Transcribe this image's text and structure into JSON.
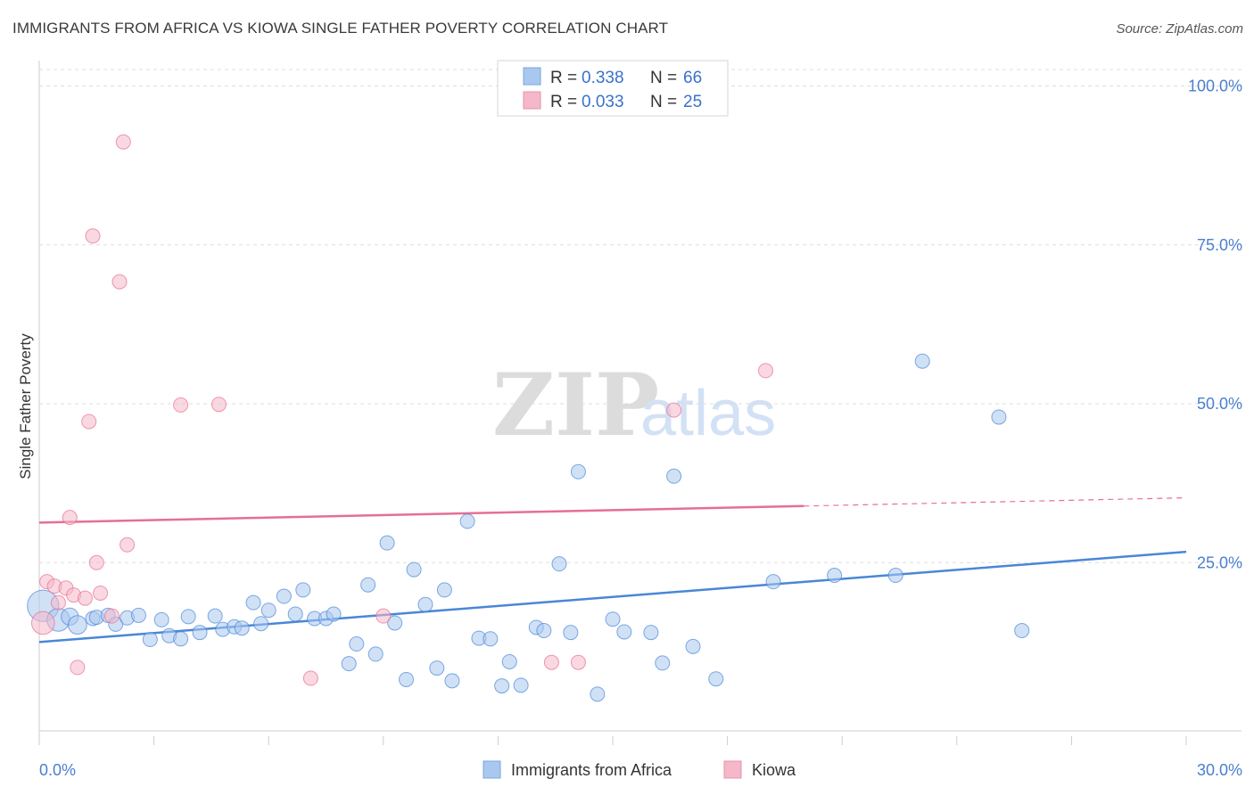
{
  "title": "IMMIGRANTS FROM AFRICA VS KIOWA SINGLE FATHER POVERTY CORRELATION CHART",
  "source": "Source: ZipAtlas.com",
  "watermark": {
    "zip": "ZIP",
    "atlas": "atlas"
  },
  "legend": {
    "rows": [
      {
        "r_label": "R =",
        "r_value": "0.338",
        "n_label": "N =",
        "n_value": "66",
        "color": "#a9c8ef"
      },
      {
        "r_label": "R =",
        "r_value": "0.033",
        "n_label": "N =",
        "n_value": "25",
        "color": "#f5b8c9"
      }
    ]
  },
  "bottom_legend": {
    "items": [
      {
        "label": "Immigrants from Africa",
        "color": "#a9c8ef"
      },
      {
        "label": "Kiowa",
        "color": "#f5b8c9"
      }
    ]
  },
  "chart_data": {
    "type": "scatter",
    "title": "IMMIGRANTS FROM AFRICA VS KIOWA SINGLE FATHER POVERTY CORRELATION CHART",
    "xlabel": "",
    "ylabel": "Single Father Poverty",
    "xlim": [
      0,
      30
    ],
    "ylim": [
      0,
      100
    ],
    "x_tick_labels": [
      {
        "value": 0,
        "label": "0.0%"
      },
      {
        "value": 30,
        "label": "30.0%"
      }
    ],
    "y_tick_labels": [
      {
        "value": 25,
        "label": "25.0%"
      },
      {
        "value": 50,
        "label": "50.0%"
      },
      {
        "value": 75,
        "label": "75.0%"
      },
      {
        "value": 100,
        "label": "100.0%"
      }
    ],
    "x_minor_ticks": [
      3,
      6,
      9,
      12,
      15,
      18,
      21,
      24,
      27,
      30
    ],
    "grid_y": [
      25,
      50,
      75,
      100
    ],
    "series": [
      {
        "name": "Immigrants from Africa",
        "color": "#4a86d8",
        "fill": "#a9c8ef",
        "trend": {
          "x0": 0,
          "y0": 12.5,
          "x1": 30,
          "y1": 26.7
        },
        "points": [
          [
            0.1,
            18.2,
            2.2
          ],
          [
            0.5,
            16.0,
            1.6
          ],
          [
            0.8,
            16.5,
            1.2
          ],
          [
            1.0,
            15.2,
            1.3
          ],
          [
            1.4,
            16.2,
            1.0
          ],
          [
            1.5,
            16.4,
            1.0
          ],
          [
            1.8,
            16.7,
            1.0
          ],
          [
            2.0,
            15.3,
            1.0
          ],
          [
            2.3,
            16.3,
            1.0
          ],
          [
            2.6,
            16.7,
            1.0
          ],
          [
            2.9,
            12.9,
            1.0
          ],
          [
            3.2,
            16.0,
            1.0
          ],
          [
            3.4,
            13.5,
            1.0
          ],
          [
            3.7,
            13.0,
            1.0
          ],
          [
            3.9,
            16.5,
            1.0
          ],
          [
            4.2,
            14.0,
            1.0
          ],
          [
            4.6,
            16.6,
            1.0
          ],
          [
            4.8,
            14.5,
            1.0
          ],
          [
            5.1,
            14.9,
            1.0
          ],
          [
            5.3,
            14.7,
            1.0
          ],
          [
            5.6,
            18.7,
            1.0
          ],
          [
            5.8,
            15.4,
            1.0
          ],
          [
            6.0,
            17.5,
            1.0
          ],
          [
            6.4,
            19.7,
            1.0
          ],
          [
            6.7,
            16.9,
            1.0
          ],
          [
            6.9,
            20.7,
            1.0
          ],
          [
            7.2,
            16.2,
            1.0
          ],
          [
            7.5,
            16.2,
            1.0
          ],
          [
            7.7,
            16.9,
            1.0
          ],
          [
            8.1,
            9.1,
            1.0
          ],
          [
            8.3,
            12.2,
            1.0
          ],
          [
            8.6,
            21.5,
            1.0
          ],
          [
            8.8,
            10.6,
            1.0
          ],
          [
            9.1,
            28.1,
            1.0
          ],
          [
            9.3,
            15.5,
            1.0
          ],
          [
            9.6,
            6.6,
            1.0
          ],
          [
            9.8,
            23.9,
            1.0
          ],
          [
            10.1,
            18.4,
            1.0
          ],
          [
            10.4,
            8.4,
            1.0
          ],
          [
            10.6,
            20.7,
            1.0
          ],
          [
            10.8,
            6.4,
            1.0
          ],
          [
            11.2,
            31.5,
            1.0
          ],
          [
            11.5,
            13.1,
            1.0
          ],
          [
            11.8,
            13.0,
            1.0
          ],
          [
            12.1,
            5.6,
            1.0
          ],
          [
            12.3,
            9.4,
            1.0
          ],
          [
            12.6,
            5.7,
            1.0
          ],
          [
            13.0,
            14.8,
            1.0
          ],
          [
            13.2,
            14.3,
            1.0
          ],
          [
            13.6,
            24.8,
            1.0
          ],
          [
            13.9,
            14.0,
            1.0
          ],
          [
            14.1,
            39.3,
            1.0
          ],
          [
            14.6,
            4.3,
            1.0
          ],
          [
            15.0,
            16.1,
            1.0
          ],
          [
            15.3,
            14.1,
            1.0
          ],
          [
            16.0,
            14.0,
            1.0
          ],
          [
            16.3,
            9.2,
            1.0
          ],
          [
            16.6,
            38.6,
            1.0
          ],
          [
            17.1,
            11.8,
            1.0
          ],
          [
            17.7,
            6.7,
            1.0
          ],
          [
            19.2,
            22.0,
            1.0
          ],
          [
            20.8,
            23.0,
            1.0
          ],
          [
            22.4,
            23.0,
            1.0
          ],
          [
            23.1,
            56.7,
            1.0
          ],
          [
            25.1,
            47.9,
            1.0
          ],
          [
            25.7,
            14.3,
            1.0
          ]
        ]
      },
      {
        "name": "Kiowa",
        "color": "#e56f94",
        "fill": "#f5b8c9",
        "trend": {
          "x0": 0,
          "y0": 31.3,
          "x1": 20,
          "y1": 33.9,
          "dash_to": {
            "x": 30,
            "y": 35.2
          }
        },
        "points": [
          [
            0.1,
            15.5,
            1.6
          ],
          [
            0.2,
            22.0,
            1.0
          ],
          [
            0.4,
            21.3,
            1.0
          ],
          [
            0.5,
            18.7,
            1.0
          ],
          [
            0.7,
            21.0,
            1.0
          ],
          [
            0.8,
            32.1,
            1.0
          ],
          [
            0.9,
            19.9,
            1.0
          ],
          [
            1.0,
            8.5,
            1.0
          ],
          [
            1.2,
            19.4,
            1.0
          ],
          [
            1.3,
            47.2,
            1.0
          ],
          [
            1.4,
            76.4,
            1.0
          ],
          [
            1.5,
            25.0,
            1.0
          ],
          [
            1.6,
            20.2,
            1.0
          ],
          [
            1.9,
            16.6,
            1.0
          ],
          [
            2.1,
            69.2,
            1.0
          ],
          [
            2.2,
            91.2,
            1.0
          ],
          [
            2.3,
            27.8,
            1.0
          ],
          [
            3.7,
            49.8,
            1.0
          ],
          [
            4.7,
            49.9,
            1.0
          ],
          [
            7.1,
            6.8,
            1.0
          ],
          [
            9.0,
            16.6,
            1.0
          ],
          [
            13.4,
            9.3,
            1.0
          ],
          [
            14.1,
            9.3,
            1.0
          ],
          [
            16.6,
            49.0,
            1.0
          ],
          [
            19.0,
            55.2,
            1.0
          ]
        ]
      }
    ]
  }
}
